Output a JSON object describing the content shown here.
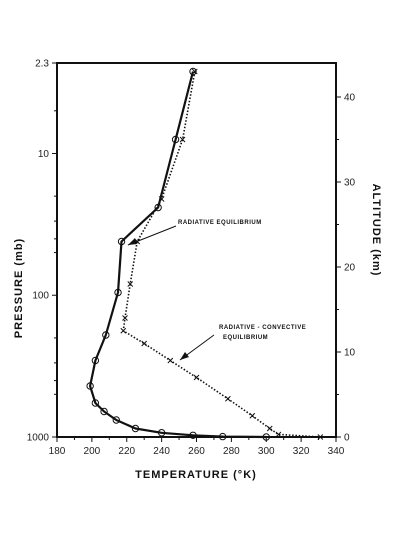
{
  "chart_data": {
    "type": "line",
    "xlabel": "TEMPERATURE (°K)",
    "ylabel_left": "PRESSURE (mb)",
    "ylabel_right": "ALTITUDE (km)",
    "xlim": [
      180,
      340
    ],
    "x_ticks": [
      "180",
      "200",
      "220",
      "240",
      "260",
      "280",
      "300",
      "320",
      "340"
    ],
    "x_tick_values": [
      180,
      200,
      220,
      240,
      260,
      280,
      300,
      320,
      340
    ],
    "pressure_log_scale": true,
    "pressure_ticks": [
      "2.3",
      "10",
      "100",
      "1000"
    ],
    "pressure_tick_values": [
      2.3,
      10,
      100,
      1000
    ],
    "altitude_range": [
      0,
      44
    ],
    "altitude_ticks": [
      "0",
      "10",
      "20",
      "30",
      "40"
    ],
    "altitude_tick_values": [
      0,
      10,
      20,
      30,
      40
    ],
    "series": [
      {
        "name": "RADIATIVE EQUILIBRIUM",
        "style": "solid",
        "marker": "circle",
        "points": [
          {
            "t": 258,
            "alt": 43
          },
          {
            "t": 248,
            "alt": 35
          },
          {
            "t": 238,
            "alt": 27
          },
          {
            "t": 217,
            "alt": 23
          },
          {
            "t": 215,
            "alt": 17
          },
          {
            "t": 208,
            "alt": 12
          },
          {
            "t": 202,
            "alt": 9
          },
          {
            "t": 199,
            "alt": 6
          },
          {
            "t": 202,
            "alt": 4
          },
          {
            "t": 207,
            "alt": 3
          },
          {
            "t": 214,
            "alt": 2
          },
          {
            "t": 225,
            "alt": 1
          },
          {
            "t": 240,
            "alt": 0.5
          },
          {
            "t": 258,
            "alt": 0.2
          },
          {
            "t": 275,
            "alt": 0.05
          },
          {
            "t": 300,
            "alt": 0
          }
        ]
      },
      {
        "name": "RADIATIVE - CONVECTIVE EQUILIBRIUM",
        "style": "dotted",
        "marker": "x",
        "points": [
          {
            "t": 259,
            "alt": 43
          },
          {
            "t": 252,
            "alt": 35
          },
          {
            "t": 240,
            "alt": 28
          },
          {
            "t": 226,
            "alt": 23
          },
          {
            "t": 222,
            "alt": 18
          },
          {
            "t": 219,
            "alt": 14
          },
          {
            "t": 218,
            "alt": 12.5
          },
          {
            "t": 230,
            "alt": 11
          },
          {
            "t": 245,
            "alt": 9
          },
          {
            "t": 260,
            "alt": 7
          },
          {
            "t": 278,
            "alt": 4.5
          },
          {
            "t": 292,
            "alt": 2.5
          },
          {
            "t": 302,
            "alt": 1
          },
          {
            "t": 307,
            "alt": 0.3
          },
          {
            "t": 331,
            "alt": 0
          }
        ]
      }
    ],
    "annotations": [
      {
        "text": "RADIATIVE  EQUILIBRIUM"
      },
      {
        "text": "RADIATIVE - CONVECTIVE"
      },
      {
        "text": "EQUILIBRIUM"
      }
    ]
  }
}
